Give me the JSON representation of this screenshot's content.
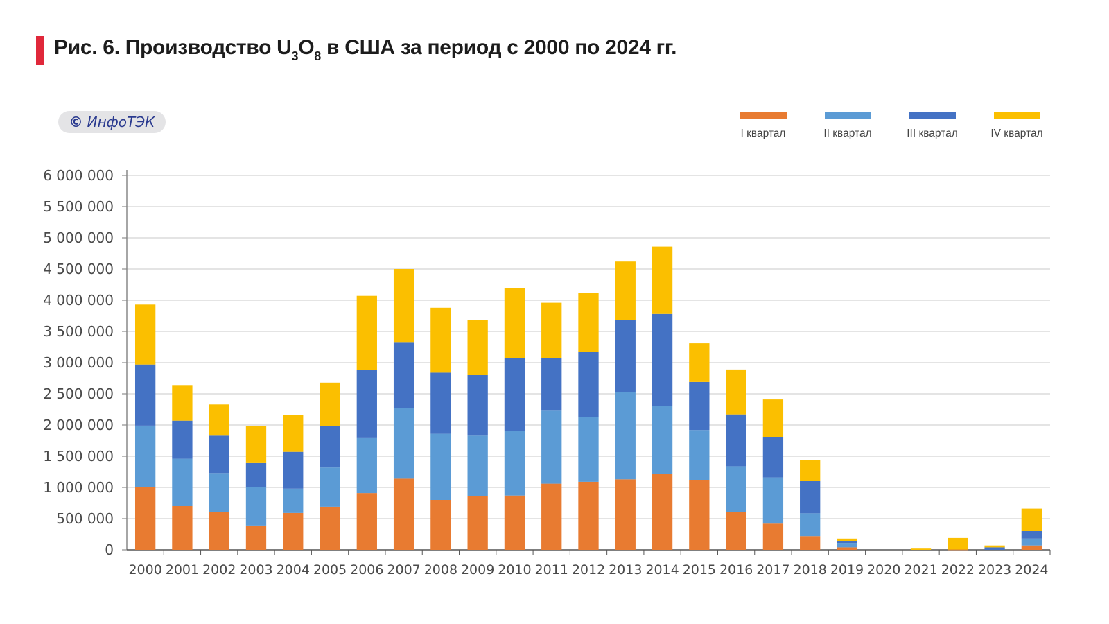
{
  "header": {
    "title_prefix": "Рис. 6. Производство U",
    "title_sub1": "3",
    "title_mid": "O",
    "title_sub2": "8",
    "title_suffix": " в США за период с 2000 по 2024 гг."
  },
  "badge": {
    "symbol": "©",
    "text": "ИнфоТЭК"
  },
  "chart_data": {
    "type": "bar",
    "stacked": true,
    "title": "Рис. 6. Производство U3O8 в США за период с 2000 по 2024 гг.",
    "xlabel": "",
    "ylabel": "",
    "ylim": [
      0,
      6000000
    ],
    "yticks": [
      0,
      500000,
      1000000,
      1500000,
      2000000,
      2500000,
      3000000,
      3500000,
      4000000,
      4500000,
      5000000,
      5500000,
      6000000
    ],
    "ytick_labels": [
      "0",
      "500 000",
      "1 000 000",
      "1 500 000",
      "2 000 000",
      "2 500 000",
      "3 000 000",
      "3 500 000",
      "4 000 000",
      "4 500 000",
      "5 000 000",
      "5 500 000",
      "6 000 000"
    ],
    "grid": true,
    "legend_position": "top-right",
    "categories": [
      "2000",
      "2001",
      "2002",
      "2003",
      "2004",
      "2005",
      "2006",
      "2007",
      "2008",
      "2009",
      "2010",
      "2011",
      "2012",
      "2013",
      "2014",
      "2015",
      "2016",
      "2017",
      "2018",
      "2019",
      "2020",
      "2021",
      "2022",
      "2023",
      "2024"
    ],
    "series": [
      {
        "name": "I квартал",
        "color": "#e87b31",
        "values": [
          1000000,
          700000,
          610000,
          390000,
          590000,
          690000,
          910000,
          1140000,
          800000,
          860000,
          870000,
          1060000,
          1090000,
          1130000,
          1220000,
          1120000,
          610000,
          420000,
          220000,
          40000,
          0,
          0,
          5000,
          0,
          70000
        ]
      },
      {
        "name": "II квартал",
        "color": "#5b9bd5",
        "values": [
          990000,
          760000,
          620000,
          610000,
          390000,
          630000,
          880000,
          1130000,
          1060000,
          970000,
          1040000,
          1170000,
          1040000,
          1400000,
          1090000,
          800000,
          730000,
          740000,
          365000,
          70000,
          0,
          0,
          0,
          0,
          110000
        ]
      },
      {
        "name": "III квартал",
        "color": "#4472c4",
        "values": [
          980000,
          610000,
          600000,
          390000,
          590000,
          660000,
          1090000,
          1060000,
          980000,
          970000,
          1160000,
          840000,
          1040000,
          1150000,
          1470000,
          770000,
          830000,
          650000,
          515000,
          30000,
          0,
          0,
          0,
          40000,
          120000
        ]
      },
      {
        "name": "IV квартал",
        "color": "#fbbf00",
        "values": [
          960000,
          560000,
          500000,
          590000,
          590000,
          700000,
          1190000,
          1170000,
          1040000,
          880000,
          1120000,
          890000,
          950000,
          940000,
          1080000,
          620000,
          720000,
          600000,
          340000,
          40000,
          0,
          20000,
          185000,
          30000,
          360000
        ]
      }
    ]
  }
}
